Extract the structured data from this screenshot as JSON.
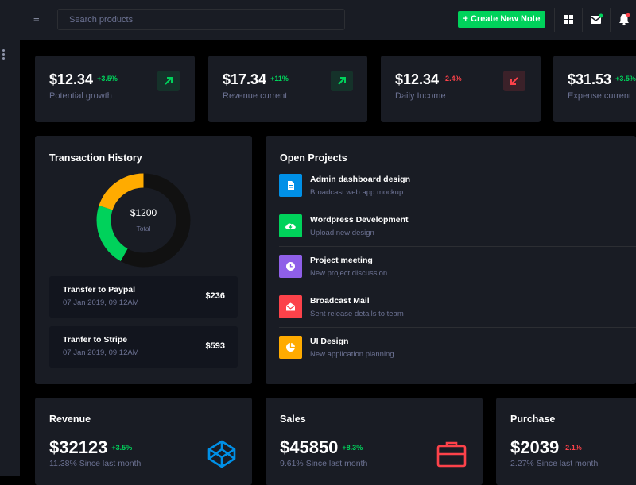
{
  "topbar": {
    "search_placeholder": "Search products",
    "create_label": "+ Create New Note"
  },
  "stats": [
    {
      "value": "$12.34",
      "delta": "+3.5%",
      "label": "Potential growth",
      "trend": "up"
    },
    {
      "value": "$17.34",
      "delta": "+11%",
      "label": "Revenue current",
      "trend": "up"
    },
    {
      "value": "$12.34",
      "delta": "-2.4%",
      "label": "Daily Income",
      "trend": "down"
    },
    {
      "value": "$31.53",
      "delta": "+3.5%",
      "label": "Expense current",
      "trend": "up"
    }
  ],
  "transactions": {
    "title": "Transaction History",
    "donut": {
      "total": "$1200",
      "total_label": "Total",
      "segments": [
        {
          "color": "#111111",
          "fraction": 0.58
        },
        {
          "color": "#00d25b",
          "fraction": 0.22
        },
        {
          "color": "#ffab00",
          "fraction": 0.2
        }
      ]
    },
    "items": [
      {
        "title": "Transfer to Paypal",
        "date": "07 Jan 2019, 09:12AM",
        "amount": "$236"
      },
      {
        "title": "Tranfer to Stripe",
        "date": "07 Jan 2019, 09:12AM",
        "amount": "$593"
      }
    ]
  },
  "projects": {
    "title": "Open Projects",
    "items": [
      {
        "title": "Admin dashboard design",
        "subtitle": "Broadcast web app mockup",
        "color": "#0090e7",
        "icon": "file-icon"
      },
      {
        "title": "Wordpress Development",
        "subtitle": "Upload new design",
        "color": "#00d25b",
        "icon": "cloud-download-icon"
      },
      {
        "title": "Project meeting",
        "subtitle": "New project discussion",
        "color": "#8f5fe8",
        "icon": "clock-icon"
      },
      {
        "title": "Broadcast Mail",
        "subtitle": "Sent release details to team",
        "color": "#fc424a",
        "icon": "email-open-icon"
      },
      {
        "title": "UI Design",
        "subtitle": "New application planning",
        "color": "#ffab00",
        "icon": "chart-pie-icon"
      }
    ]
  },
  "summary": [
    {
      "title": "Revenue",
      "value": "$32123",
      "delta": "+3.5%",
      "sub": "11.38% Since last month",
      "trend": "up",
      "icon": "codepen-icon",
      "icon_color": "#0090e7"
    },
    {
      "title": "Sales",
      "value": "$45850",
      "delta": "+8.3%",
      "sub": "9.61% Since last month",
      "trend": "up",
      "icon": "briefcase-icon",
      "icon_color": "#fc424a"
    },
    {
      "title": "Purchase",
      "value": "$2039",
      "delta": "-2.1%",
      "sub": "2.27% Since last month",
      "trend": "down"
    }
  ]
}
